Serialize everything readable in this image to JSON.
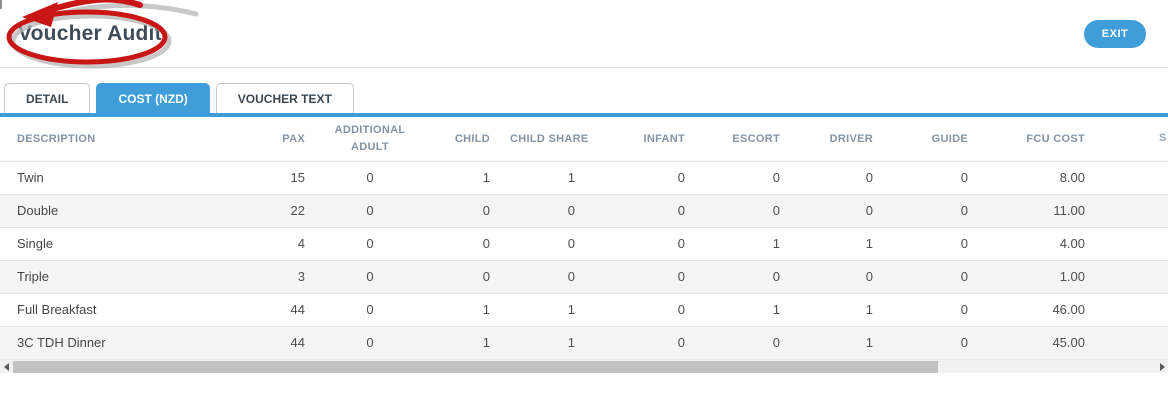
{
  "header": {
    "title": "Voucher Audit",
    "exit_label": "EXIT"
  },
  "annotation": {
    "shape": "red-circle-with-arrow",
    "color": "#c81515",
    "shadow_color": "#b5b5b5"
  },
  "tabs": {
    "items": [
      {
        "label": "DETAIL",
        "active": false
      },
      {
        "label": "COST (NZD)",
        "active": true
      },
      {
        "label": "VOUCHER TEXT",
        "active": false
      }
    ]
  },
  "colors": {
    "accent_blue": "#3f9ed9",
    "header_text": "#8494a4",
    "row_stripe": "#f5f5f5"
  },
  "table": {
    "columns": [
      "DESCRIPTION",
      "PAX",
      "ADDITIONAL ADULT",
      "CHILD",
      "CHILD SHARE",
      "INFANT",
      "ESCORT",
      "DRIVER",
      "GUIDE",
      "FCU COST"
    ],
    "rows": [
      [
        "Twin",
        "15",
        "0",
        "1",
        "1",
        "0",
        "0",
        "0",
        "0",
        "8.00"
      ],
      [
        "Double",
        "22",
        "0",
        "0",
        "0",
        "0",
        "0",
        "0",
        "0",
        "11.00"
      ],
      [
        "Single",
        "4",
        "0",
        "0",
        "0",
        "0",
        "1",
        "1",
        "0",
        "4.00"
      ],
      [
        "Triple",
        "3",
        "0",
        "0",
        "0",
        "0",
        "0",
        "0",
        "0",
        "1.00"
      ],
      [
        "Full Breakfast",
        "44",
        "0",
        "1",
        "1",
        "0",
        "1",
        "1",
        "0",
        "46.00"
      ],
      [
        "3C TDH Dinner",
        "44",
        "0",
        "1",
        "1",
        "0",
        "0",
        "1",
        "0",
        "45.00"
      ]
    ],
    "next_column_partial": "S"
  }
}
